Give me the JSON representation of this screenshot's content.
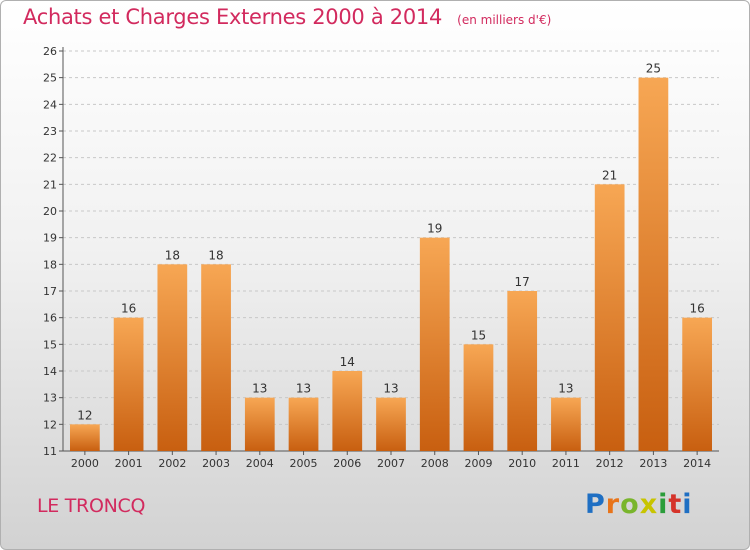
{
  "header": {
    "title": "Achats et Charges Externes 2000 à 2014",
    "subtitle": "(en milliers d'€)"
  },
  "footer": {
    "place": "LE TRONCQ",
    "logo_text": "Proxiti",
    "logo_colors": [
      "#1f6fc3",
      "#e8741a",
      "#79b52c",
      "#c8c400",
      "#2a9d3a",
      "#d5332a",
      "#1f6fc3"
    ]
  },
  "colors": {
    "bar_top": "#f7a754",
    "bar_bottom": "#c85f10",
    "title": "#d22a5e",
    "text": "#333333",
    "grid": "#c8c8c8"
  },
  "chart_data": {
    "type": "bar",
    "categories": [
      "2000",
      "2001",
      "2002",
      "2003",
      "2004",
      "2005",
      "2006",
      "2007",
      "2008",
      "2009",
      "2010",
      "2011",
      "2012",
      "2013",
      "2014"
    ],
    "values": [
      12,
      16,
      18,
      18,
      13,
      13,
      14,
      13,
      19,
      15,
      17,
      13,
      21,
      25,
      16
    ],
    "ylim": [
      11,
      26
    ],
    "yticks": [
      11,
      12,
      13,
      14,
      15,
      16,
      17,
      18,
      19,
      20,
      21,
      22,
      23,
      24,
      25,
      26
    ],
    "grid": true
  }
}
